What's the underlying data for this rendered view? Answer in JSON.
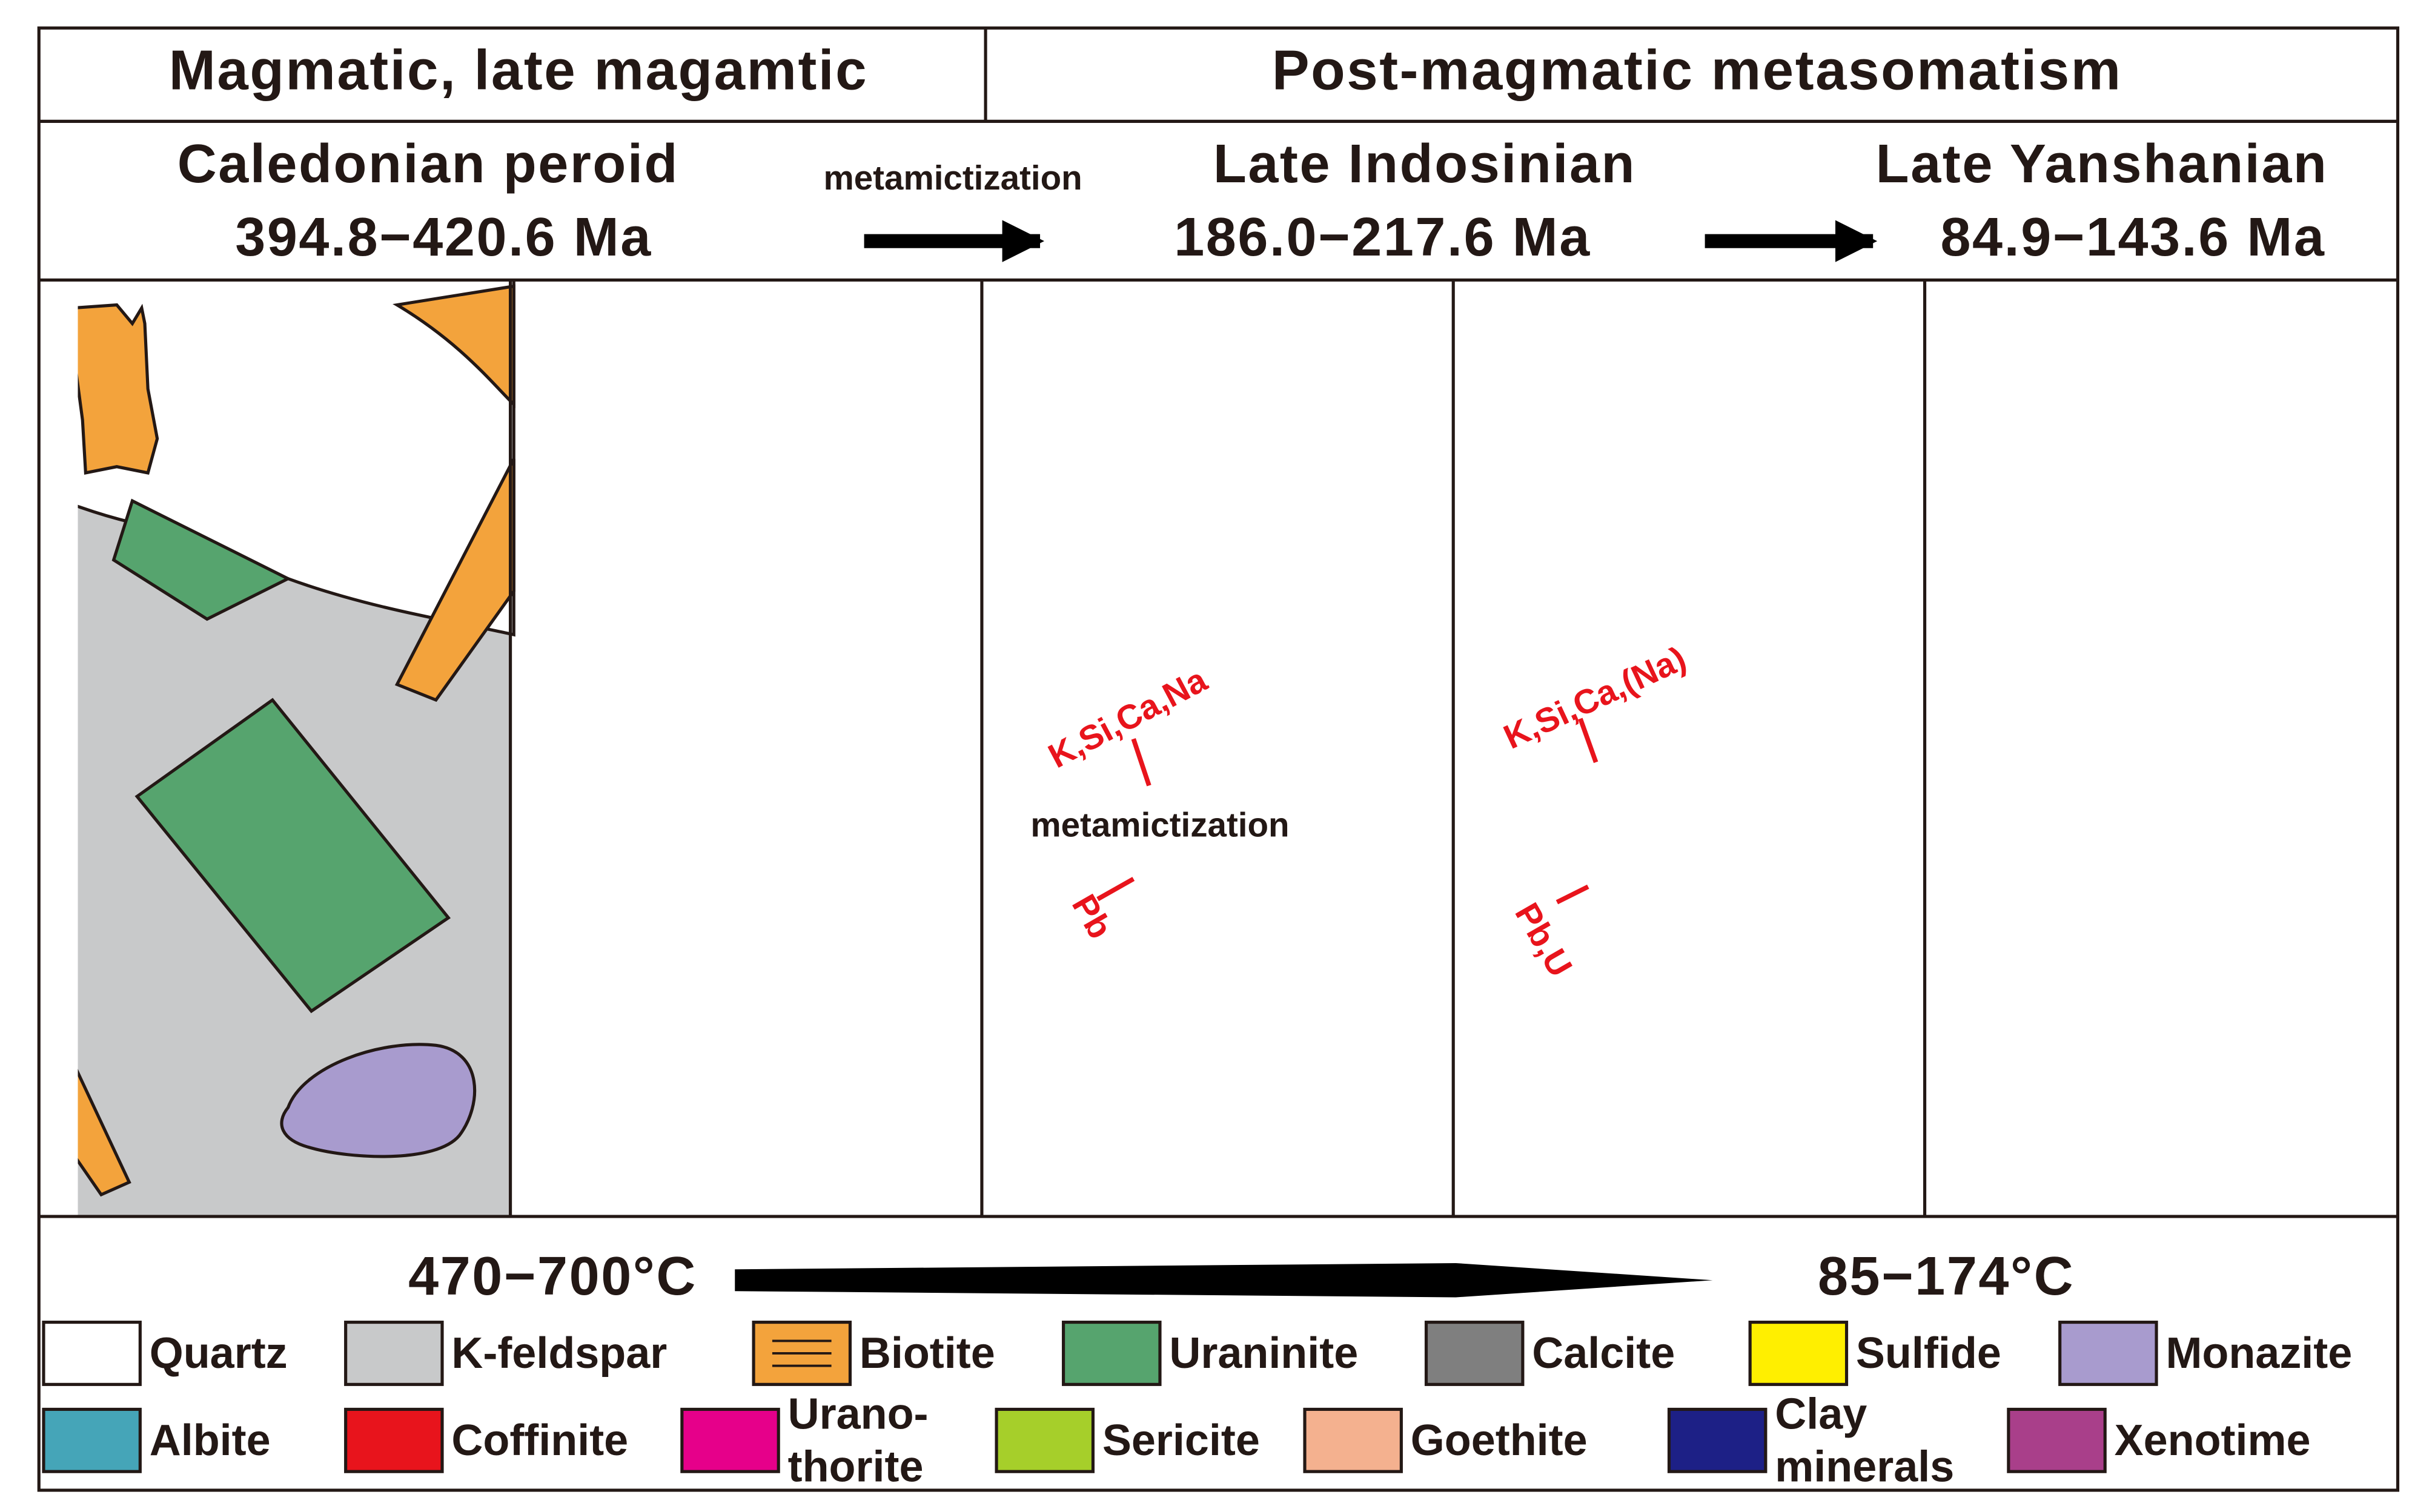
{
  "header": {
    "left": "Magmatic, late magamtic",
    "right": "Post-magmatic metasomatism"
  },
  "stages": [
    {
      "name": "Caledonian peroid",
      "age": "394.8−420.6 Ma"
    },
    {
      "name": "Late Indosinian",
      "age": "186.0−217.6 Ma"
    },
    {
      "name": "Late Yanshanian",
      "age": "84.9−143.6 Ma"
    }
  ],
  "arrow_label": "metamictization",
  "panel_labels": {
    "panel3_in": "K,Si,Ca,Na",
    "panel3_mid": "metamictization",
    "panel3_out": "Pb",
    "panel4_in": "K,Si,Ca,(Na)",
    "panel4_out": "Pb,U"
  },
  "temperatures": {
    "start": "470−700°C",
    "end": "85−174°C"
  },
  "legend": [
    {
      "name": [
        "Quartz"
      ],
      "color": "#ffffff"
    },
    {
      "name": [
        "K-feldspar"
      ],
      "color": "#c8c9ca"
    },
    {
      "name": [
        "Biotite"
      ],
      "color": "#f3a33c"
    },
    {
      "name": [
        "Uraninite"
      ],
      "color": "#56a46e"
    },
    {
      "name": [
        "Calcite"
      ],
      "color": "#7f7f7f"
    },
    {
      "name": [
        "Sulfide"
      ],
      "color": "#ffef00"
    },
    {
      "name": [
        "Monazite"
      ],
      "color": "#a89bce"
    },
    {
      "name": [
        "Albite"
      ],
      "color": "#45a5b8"
    },
    {
      "name": [
        "Coffinite"
      ],
      "color": "#e8141c"
    },
    {
      "name": [
        "Urano-",
        "thorite"
      ],
      "color": "#e6008a"
    },
    {
      "name": [
        "Sericite"
      ],
      "color": "#a6cf2a"
    },
    {
      "name": [
        "Goethite"
      ],
      "color": "#f4b18f"
    },
    {
      "name": [
        "Clay",
        "minerals"
      ],
      "color": "#1d2086"
    },
    {
      "name": [
        "Xenotime"
      ],
      "color": "#a93f8a"
    }
  ]
}
